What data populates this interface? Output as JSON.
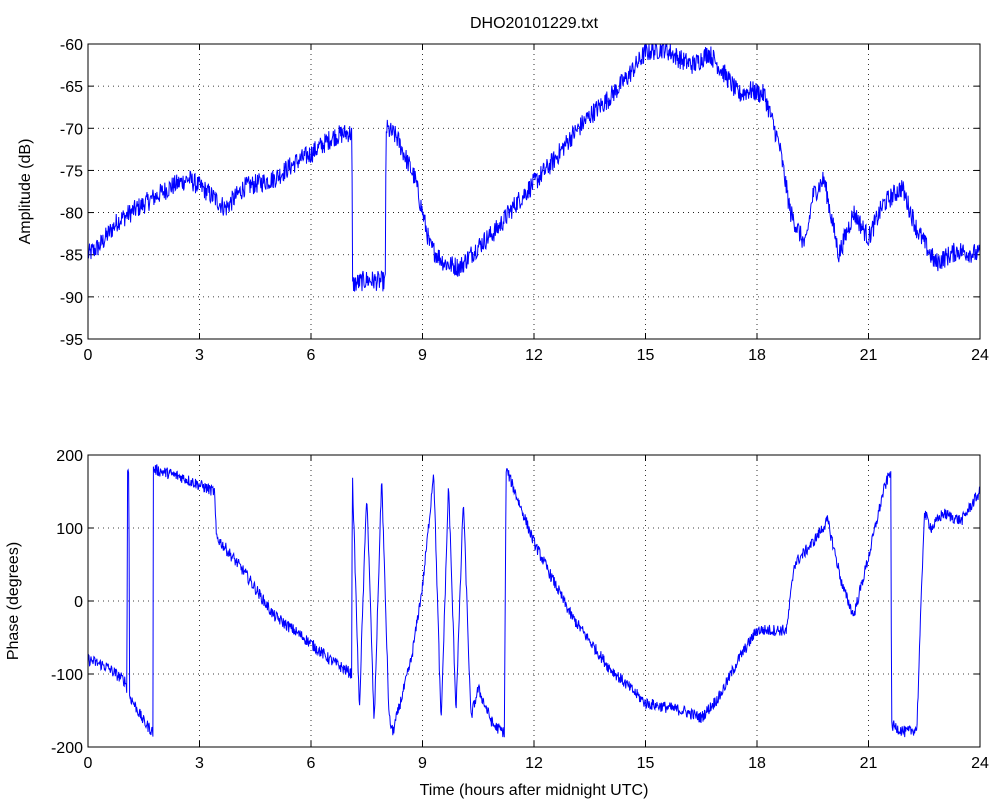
{
  "figure": {
    "title": "DHO20101229.txt",
    "line_color": "#0000ff"
  },
  "chart_data": [
    {
      "type": "line",
      "title": "DHO20101229.txt",
      "xlabel": "",
      "ylabel": "Amplitude (dB)",
      "xlim": [
        0,
        24
      ],
      "ylim": [
        -95,
        -60
      ],
      "xticks": [
        0,
        3,
        6,
        9,
        12,
        15,
        18,
        21,
        24
      ],
      "yticks": [
        -95,
        -90,
        -85,
        -80,
        -75,
        -70,
        -65,
        -60
      ],
      "xtick_labels": [
        "0",
        "3",
        "6",
        "9",
        "12",
        "15",
        "18",
        "21",
        "24"
      ],
      "ytick_labels": [
        "-95",
        "-90",
        "-85",
        "-80",
        "-75",
        "-70",
        "-65",
        "-60"
      ],
      "grid": true,
      "noise_db": 1.2,
      "series": [
        {
          "color": "#0000ff",
          "x": [
            0,
            0.3,
            0.8,
            1.5,
            2.2,
            2.7,
            3.2,
            3.7,
            4.2,
            5,
            5.6,
            6,
            6.6,
            7,
            7.1,
            7.12,
            7.5,
            8,
            8.02,
            8.3,
            8.8,
            9.2,
            9.6,
            10,
            10.5,
            11,
            11.5,
            12,
            12.5,
            13,
            13.5,
            14,
            14.5,
            15,
            15.5,
            16,
            16.3,
            16.7,
            17.2,
            17.5,
            17.8,
            18.2,
            18.6,
            18.9,
            19.1,
            19.3,
            19.5,
            19.8,
            20.2,
            20.6,
            21,
            21.4,
            21.9,
            22.3,
            22.8,
            23.4,
            24
          ],
          "y": [
            -85,
            -84,
            -81,
            -79,
            -77,
            -76,
            -77.5,
            -79.5,
            -77,
            -76,
            -74,
            -73,
            -71,
            -70.5,
            -70.7,
            -88.5,
            -88,
            -88.2,
            -70,
            -71,
            -76,
            -84,
            -86,
            -86.5,
            -84,
            -82,
            -79,
            -76.5,
            -74,
            -71,
            -68.5,
            -66.5,
            -64,
            -61,
            -60.5,
            -62,
            -62.5,
            -61,
            -64,
            -66,
            -65.5,
            -66,
            -72,
            -80,
            -82,
            -84,
            -78,
            -76,
            -85,
            -80,
            -83,
            -79,
            -77,
            -82,
            -86,
            -84.5,
            -85
          ]
        }
      ]
    },
    {
      "type": "line",
      "title": "",
      "xlabel": "Time (hours after midnight UTC)",
      "ylabel": "Phase (degrees)",
      "xlim": [
        0,
        24
      ],
      "ylim": [
        -200,
        200
      ],
      "xticks": [
        0,
        3,
        6,
        9,
        12,
        15,
        18,
        21,
        24
      ],
      "yticks": [
        -200,
        -100,
        0,
        100,
        200
      ],
      "xtick_labels": [
        "0",
        "3",
        "6",
        "9",
        "12",
        "15",
        "18",
        "21",
        "24"
      ],
      "ytick_labels": [
        "-200",
        "-100",
        "0",
        "100",
        "200"
      ],
      "grid": true,
      "noise_deg": 8,
      "series": [
        {
          "color": "#0000ff",
          "x": [
            0,
            0.5,
            1,
            1.05,
            1.06,
            1.1,
            1.12,
            1.5,
            1.75,
            1.76,
            1.8,
            2.5,
            3.4,
            3.45,
            3.5,
            4.2,
            5,
            5.8,
            6.5,
            7.1,
            7.11,
            7.3,
            7.5,
            7.7,
            7.9,
            8.1,
            8.2,
            8.7,
            9.0,
            9.2,
            9.3,
            9.5,
            9.7,
            9.9,
            10.1,
            10.3,
            10.5,
            10.9,
            11.2,
            11.25,
            11.3,
            12,
            13,
            14,
            15,
            16,
            16.5,
            17,
            17.5,
            18,
            18.6,
            18.8,
            19,
            19.5,
            19.9,
            20.3,
            20.6,
            21,
            21.4,
            21.6,
            21.62,
            22,
            22.3,
            22.5,
            22.7,
            23,
            23.5,
            24
          ],
          "y": [
            -80,
            -90,
            -110,
            -120,
            180,
            180,
            -130,
            -165,
            -180,
            180,
            180,
            170,
            150,
            90,
            85,
            40,
            -20,
            -50,
            -80,
            -100,
            180,
            -150,
            150,
            -170,
            170,
            -160,
            -180,
            -80,
            20,
            120,
            180,
            -170,
            160,
            -150,
            140,
            -160,
            -120,
            -170,
            -180,
            180,
            175,
            80,
            -20,
            -90,
            -140,
            -150,
            -160,
            -130,
            -80,
            -40,
            -40,
            -40,
            50,
            80,
            110,
            20,
            -20,
            60,
            150,
            180,
            -170,
            -180,
            -175,
            120,
            100,
            120,
            110,
            150
          ]
        }
      ]
    }
  ]
}
